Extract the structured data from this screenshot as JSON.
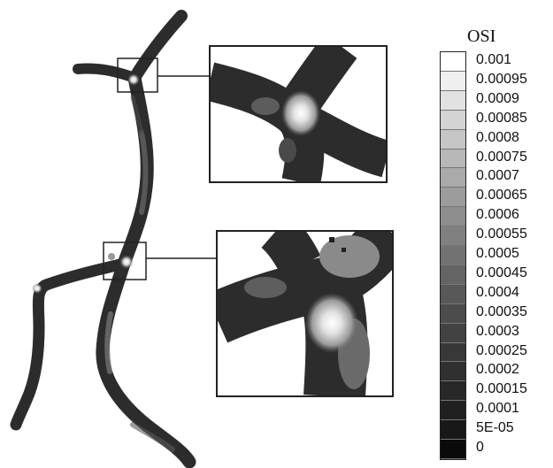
{
  "legend": {
    "title": "OSI",
    "labels": [
      "0.001",
      "0.00095",
      "0.0009",
      "0.00085",
      "0.0008",
      "0.00075",
      "0.0007",
      "0.00065",
      "0.0006",
      "0.00055",
      "0.0005",
      "0.00045",
      "0.0004",
      "0.00035",
      "0.0003",
      "0.00025",
      "0.0002",
      "0.00015",
      "0.0001",
      "5E-05",
      "0"
    ],
    "colors": [
      "#ffffff",
      "#f0f0f0",
      "#e2e2e2",
      "#d4d4d4",
      "#c6c6c6",
      "#b8b8b8",
      "#aaaaaa",
      "#9c9c9c",
      "#8e8e8e",
      "#808080",
      "#727272",
      "#646464",
      "#585858",
      "#4c4c4c",
      "#424242",
      "#383838",
      "#303030",
      "#282828",
      "#202020",
      "#181818",
      "#0a0a0a"
    ]
  },
  "colors": {
    "vessel": "#2c2c2c",
    "hotspot": "#f2f2f2",
    "mid_gray": "#8a8a8a",
    "frame": "#222222"
  }
}
